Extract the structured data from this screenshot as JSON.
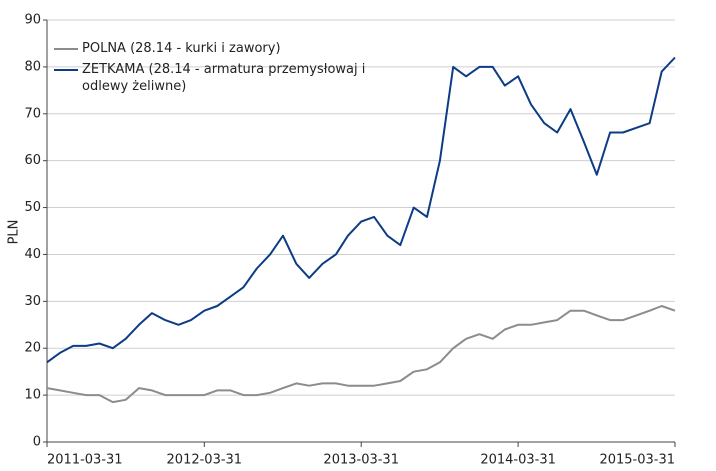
{
  "chart_data": {
    "type": "line",
    "ylabel": "PLN",
    "x": [
      "2011-03-31",
      "2011-04-30",
      "2011-05-31",
      "2011-06-30",
      "2011-07-31",
      "2011-08-31",
      "2011-09-30",
      "2011-10-31",
      "2011-11-30",
      "2011-12-31",
      "2012-01-31",
      "2012-02-29",
      "2012-03-31",
      "2012-04-30",
      "2012-05-31",
      "2012-06-30",
      "2012-07-31",
      "2012-08-31",
      "2012-09-30",
      "2012-10-31",
      "2012-11-30",
      "2012-12-31",
      "2013-01-31",
      "2013-02-28",
      "2013-03-31",
      "2013-04-30",
      "2013-05-31",
      "2013-06-30",
      "2013-07-31",
      "2013-08-31",
      "2013-09-30",
      "2013-10-31",
      "2013-11-30",
      "2013-12-31",
      "2014-01-31",
      "2014-02-28",
      "2014-03-31",
      "2014-04-30",
      "2014-05-31",
      "2014-06-30",
      "2014-07-31",
      "2014-08-31",
      "2014-09-30",
      "2014-10-31",
      "2014-11-30",
      "2014-12-31",
      "2015-01-31",
      "2015-02-28",
      "2015-03-31"
    ],
    "series": [
      {
        "name": "POLNA (28.14 - kurki i zawory)",
        "color": "#8c8c8c",
        "values": [
          11.5,
          11,
          10.5,
          10,
          10,
          8.5,
          9,
          11.5,
          11,
          10,
          10,
          10,
          10,
          11,
          11,
          10,
          10,
          10.5,
          11.5,
          12.5,
          12,
          12.5,
          12.5,
          12,
          12,
          12,
          12.5,
          13,
          15,
          15.5,
          17,
          20,
          22,
          23,
          22,
          24,
          25,
          25,
          25.5,
          26,
          28,
          28,
          27,
          26,
          26,
          27,
          28,
          29,
          28
        ]
      },
      {
        "name": "ZETKAMA (28.14 - armatura przemysłowaj i odlewy żeliwne)",
        "color": "#0d3c85",
        "values": [
          17,
          19,
          20.5,
          20.5,
          21,
          20,
          22,
          25,
          27.5,
          26,
          25,
          26,
          28,
          29,
          31,
          33,
          37,
          40,
          44,
          38,
          35,
          38,
          40,
          44,
          47,
          48,
          44,
          42,
          50,
          48,
          60,
          80,
          78,
          80,
          80,
          76,
          78,
          72,
          68,
          66,
          71,
          64,
          57,
          66,
          66,
          67,
          68,
          79,
          82
        ]
      }
    ],
    "xlim": [
      "2011-03-31",
      "2015-03-31"
    ],
    "xticks": [
      "2011-03-31",
      "2012-03-31",
      "2013-03-31",
      "2014-03-31",
      "2015-03-31"
    ],
    "ylim": [
      0,
      90
    ],
    "yticks": [
      0,
      10,
      20,
      30,
      40,
      50,
      60,
      70,
      80,
      90
    ],
    "grid": true,
    "legend": "upper left"
  }
}
